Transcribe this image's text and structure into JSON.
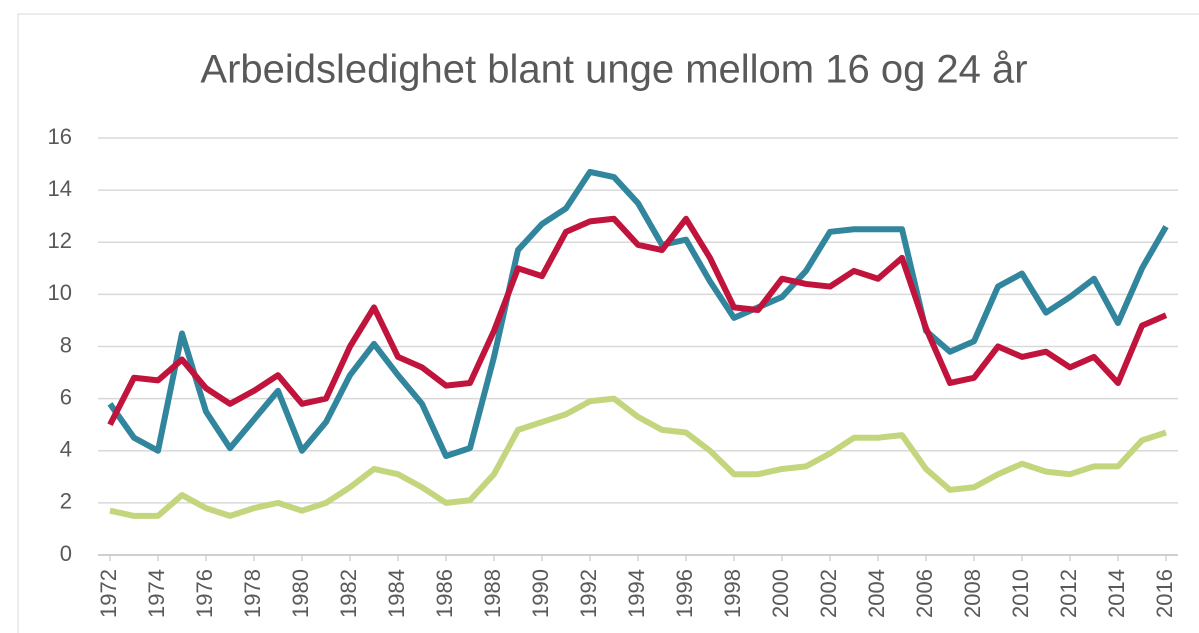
{
  "chart_data": {
    "type": "line",
    "title": "Arbeidsledighet blant unge mellom 16 og 24 år",
    "x": [
      1972,
      1973,
      1974,
      1975,
      1976,
      1977,
      1978,
      1979,
      1980,
      1981,
      1982,
      1983,
      1984,
      1985,
      1986,
      1987,
      1988,
      1989,
      1990,
      1991,
      1992,
      1993,
      1994,
      1995,
      1996,
      1997,
      1998,
      1999,
      2000,
      2001,
      2002,
      2003,
      2004,
      2005,
      2006,
      2007,
      2008,
      2009,
      2010,
      2011,
      2012,
      2013,
      2014,
      2015,
      2016
    ],
    "series": [
      {
        "color": "#31859c",
        "values": [
          5.8,
          4.5,
          4.0,
          8.5,
          5.5,
          4.1,
          5.2,
          6.3,
          4.0,
          5.1,
          6.9,
          8.1,
          6.9,
          5.8,
          3.8,
          4.1,
          7.6,
          11.7,
          12.7,
          13.3,
          14.7,
          14.5,
          13.5,
          11.9,
          12.1,
          10.5,
          9.1,
          9.5,
          9.9,
          10.9,
          12.4,
          12.5,
          12.5,
          12.5,
          8.6,
          7.8,
          8.2,
          10.3,
          10.8,
          9.3,
          9.9,
          10.6,
          8.9,
          11.0,
          12.6
        ]
      },
      {
        "color": "#c0143c",
        "values": [
          5.0,
          6.8,
          6.7,
          7.5,
          6.4,
          5.8,
          6.3,
          6.9,
          5.8,
          6.0,
          8.0,
          9.5,
          7.6,
          7.2,
          6.5,
          6.6,
          8.6,
          11.0,
          10.7,
          12.4,
          12.8,
          12.9,
          11.9,
          11.7,
          12.9,
          11.4,
          9.5,
          9.4,
          10.6,
          10.4,
          10.3,
          10.9,
          10.6,
          11.4,
          8.7,
          6.6,
          6.8,
          8.0,
          7.6,
          7.8,
          7.2,
          7.6,
          6.6,
          8.8,
          9.2
        ]
      },
      {
        "color": "#c3d67e",
        "values": [
          1.7,
          1.5,
          1.5,
          2.3,
          1.8,
          1.5,
          1.8,
          2.0,
          1.7,
          2.0,
          2.6,
          3.3,
          3.1,
          2.6,
          2.0,
          2.1,
          3.1,
          4.8,
          5.1,
          5.4,
          5.9,
          6.0,
          5.3,
          4.8,
          4.7,
          4.0,
          3.1,
          3.1,
          3.3,
          3.4,
          3.9,
          4.5,
          4.5,
          4.6,
          3.3,
          2.5,
          2.6,
          3.1,
          3.5,
          3.2,
          3.1,
          3.4,
          3.4,
          4.4,
          4.7
        ]
      }
    ],
    "xlim": [
      1971.5,
      2016.5
    ],
    "xticks": [
      1972,
      1974,
      1976,
      1978,
      1980,
      1982,
      1984,
      1986,
      1988,
      1990,
      1992,
      1994,
      1996,
      1998,
      2000,
      2002,
      2004,
      2006,
      2008,
      2010,
      2012,
      2014,
      2016
    ],
    "ylim": [
      0,
      16
    ],
    "yticks": [
      0,
      2,
      4,
      6,
      8,
      10,
      12,
      14,
      16
    ],
    "grid": true
  }
}
